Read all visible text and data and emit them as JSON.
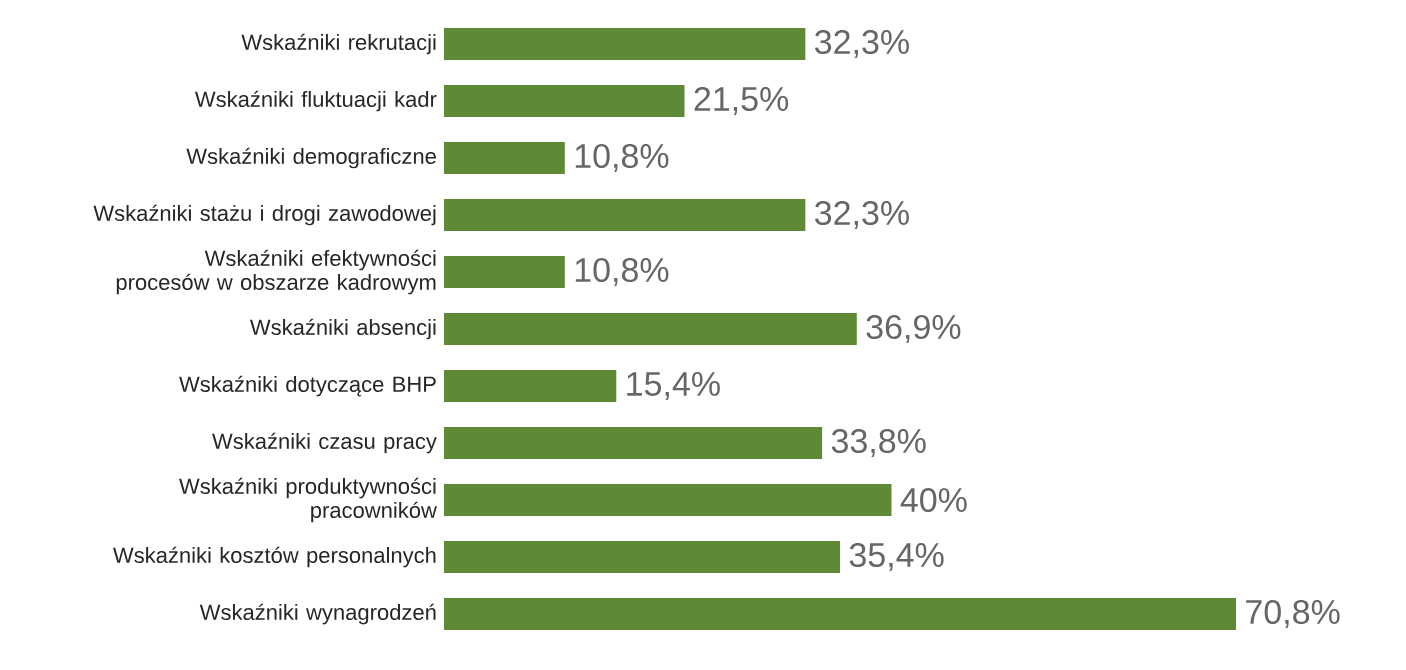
{
  "chart_data": {
    "type": "bar",
    "orientation": "horizontal",
    "categories": [
      "Wskaźniki rekrutacji",
      "Wskaźniki fluktuacji kadr",
      "Wskaźniki demograficzne",
      "Wskaźniki stażu i drogi zawodowej",
      "Wskaźniki efektywności procesów w obszarze kadrowym",
      "Wskaźniki absencji",
      "Wskaźniki dotyczące BHP",
      "Wskaźniki czasu pracy",
      "Wskaźniki produktywności pracowników",
      "Wskaźniki kosztów personalnych",
      "Wskaźniki wynagrodzeń"
    ],
    "values": [
      32.3,
      21.5,
      10.8,
      32.3,
      10.8,
      36.9,
      15.4,
      33.8,
      40,
      35.4,
      70.8
    ],
    "value_labels": [
      "32,3%",
      "21,5%",
      "10,8%",
      "32,3%",
      "10,8%",
      "36,9%",
      "15,4%",
      "33,8%",
      "40%",
      "35,4%",
      "70,8%"
    ],
    "color": "#5f8a35",
    "tick_labels": "y"
  }
}
